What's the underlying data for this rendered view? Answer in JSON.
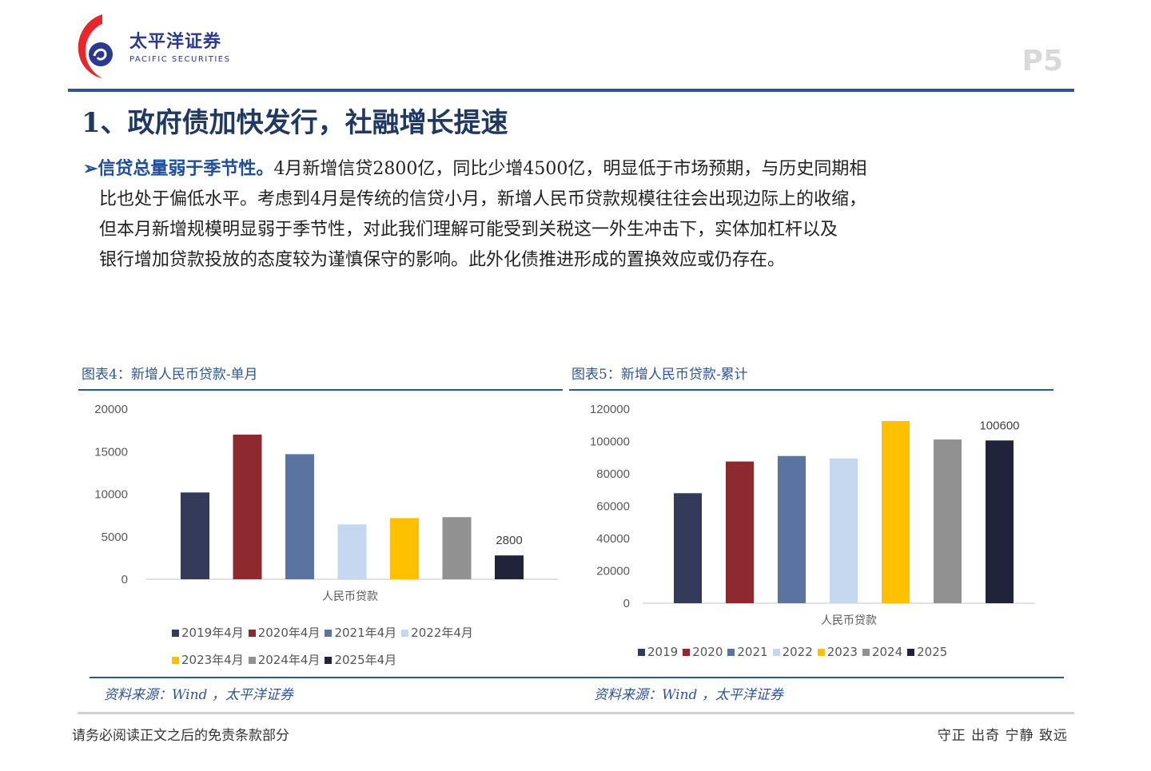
{
  "header": {
    "logo_cn": "太平洋证券",
    "logo_en": "PACIFIC SECURITIES",
    "page_number": "P5",
    "brand_color": "#2e5597"
  },
  "title": "1、政府债加快发行，社融增长提速",
  "paragraph": {
    "highlight": "➢信贷总量弱于季节性。",
    "line1": "4月新增信贷2800亿，同比少增4500亿，明显低于市场预期，与历史同期相",
    "line2": "比也处于偏低水平。考虑到4月是传统的信贷小月，新增人民币贷款规模往往会出现边际上的收缩，",
    "line3": "但本月新增规模明显弱于季节性，对此我们理解可能受到关税这一外生冲击下，实体加杠杆以及",
    "line4": "银行增加贷款投放的态度较为谨慎保守的影响。此外化债推进形成的置换效应或仍存在。"
  },
  "chart_data": [
    {
      "type": "bar",
      "title": "图表4：新增人民币贷款-单月",
      "xlabel": "人民币贷款",
      "ylim": [
        0,
        20000
      ],
      "yticks": [
        0,
        5000,
        10000,
        15000,
        20000
      ],
      "series": [
        {
          "name": "2019年4月",
          "values": [
            10200
          ]
        },
        {
          "name": "2020年4月",
          "values": [
            17000
          ]
        },
        {
          "name": "2021年4月",
          "values": [
            14700
          ]
        },
        {
          "name": "2022年4月",
          "values": [
            6454
          ]
        },
        {
          "name": "2023年4月",
          "values": [
            7188
          ]
        },
        {
          "name": "2024年4月",
          "values": [
            7300
          ]
        },
        {
          "name": "2025年4月",
          "values": [
            2800
          ]
        }
      ],
      "data_label": "2800",
      "legend": "bottom",
      "source": "资料来源：Wind ，太平洋证券"
    },
    {
      "type": "bar",
      "title": "图表5：新增人民币贷款-累计",
      "xlabel": "人民币贷款",
      "ylim": [
        0,
        120000
      ],
      "yticks": [
        0,
        20000,
        40000,
        60000,
        80000,
        100000,
        120000
      ],
      "series": [
        {
          "name": "2019",
          "values": [
            68000
          ]
        },
        {
          "name": "2020",
          "values": [
            87600
          ]
        },
        {
          "name": "2021",
          "values": [
            91000
          ]
        },
        {
          "name": "2022",
          "values": [
            89500
          ]
        },
        {
          "name": "2023",
          "values": [
            112600
          ]
        },
        {
          "name": "2024",
          "values": [
            101200
          ]
        },
        {
          "name": "2025",
          "values": [
            100600
          ]
        }
      ],
      "data_label": "100600",
      "legend": "bottom",
      "source": "资料来源：Wind ，太平洋证券"
    }
  ],
  "colors": [
    "#333a5a",
    "#8e2a2f",
    "#5b73a0",
    "#c5d8f0",
    "#ffc000",
    "#919191",
    "#20233a"
  ],
  "footer": {
    "left": "请务必阅读正文之后的免责条款部分",
    "right": "守正 出奇 宁静 致远"
  }
}
